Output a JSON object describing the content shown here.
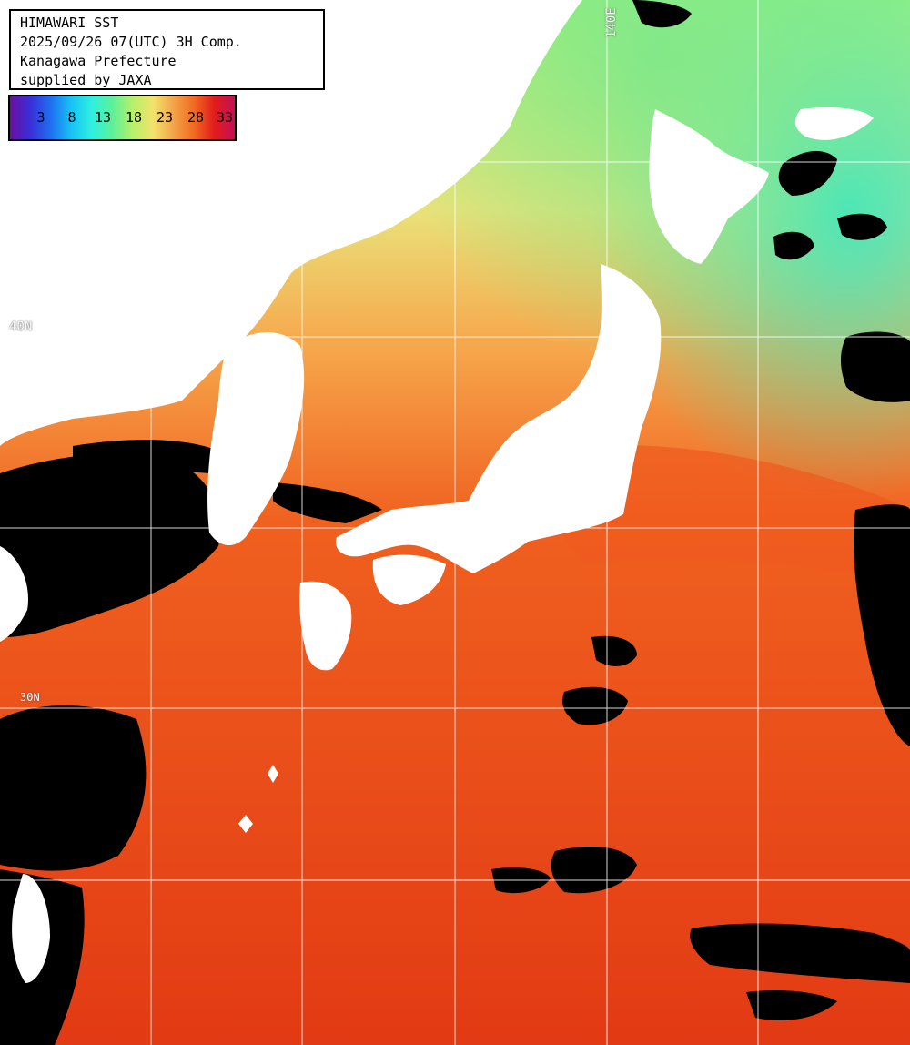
{
  "title": "HIMAWARI SST",
  "datetime": "2025/09/26 07(UTC) 3H Comp.",
  "region": "Kanagawa Prefecture",
  "credit": "supplied by JAXA",
  "legend": {
    "ticks": [
      "3",
      "8",
      "13",
      "18",
      "23",
      "28",
      "33"
    ],
    "colors": [
      "#6a0fa0",
      "#3a2fd8",
      "#1f6ff0",
      "#17c3f5",
      "#2ef0e0",
      "#5cf09a",
      "#b6f06a",
      "#f3e26a",
      "#f3a44a",
      "#f26a22",
      "#e11c1c",
      "#c40f5a"
    ]
  },
  "grid_labels": {
    "lon_140": "140E",
    "lat_40": "40N",
    "lat_30": "30N"
  },
  "map_colors": {
    "land": "#ffffff",
    "cloud_mask": "#000000",
    "grid": "#ffffff",
    "sea_cold": "#3ee6c0",
    "sea_cool": "#9ff07a",
    "sea_mild": "#e9e27a",
    "sea_warm": "#f6a84c",
    "sea_hot": "#f0601f",
    "sea_hottest": "#e23a14"
  }
}
